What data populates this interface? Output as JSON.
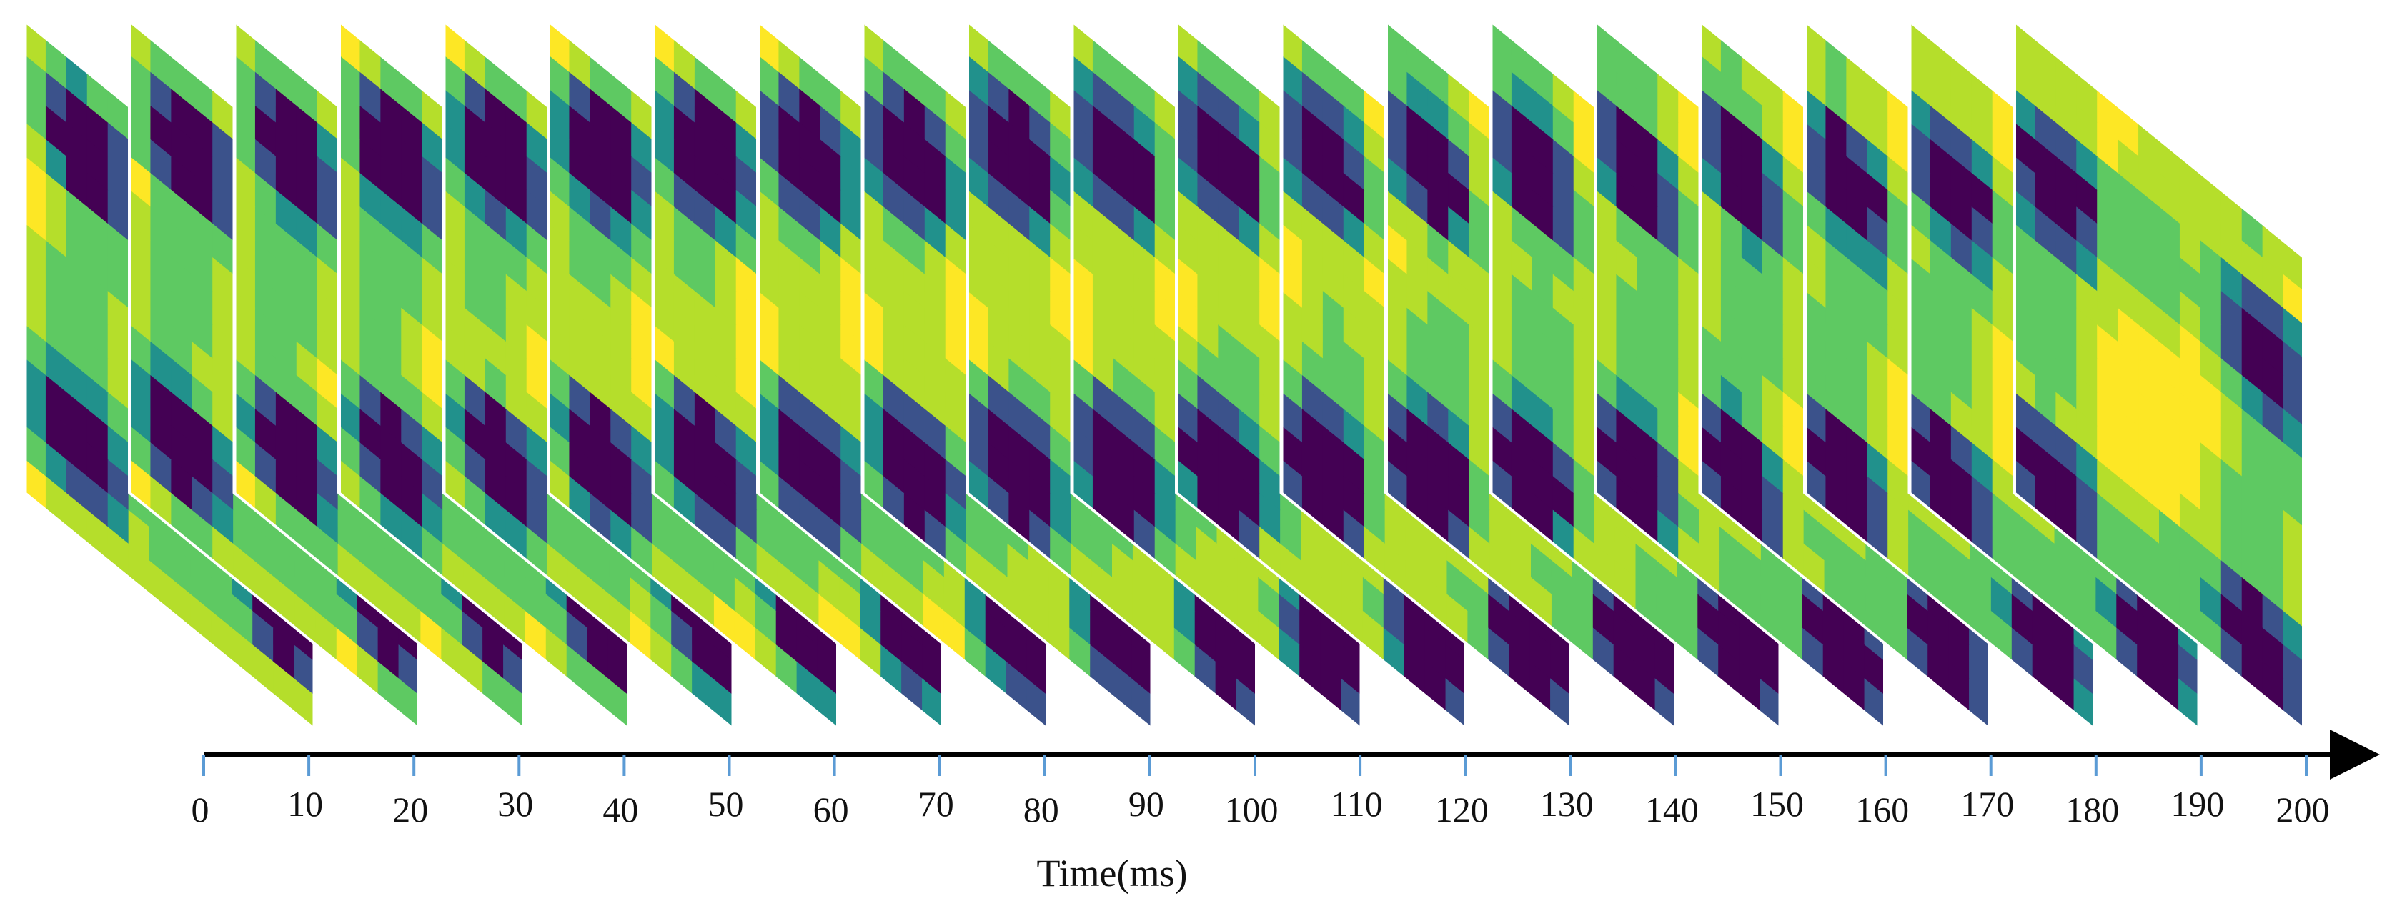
{
  "figure": {
    "description_type": "time-series stack of matrix frames",
    "colormap": [
      "#440154",
      "#3b528b",
      "#21918c",
      "#5ec962",
      "#b5de2b",
      "#fde725"
    ],
    "frame_border_color": "#ffffff",
    "axis_color": "#000000",
    "tick_color": "#5b9bd5"
  },
  "axis": {
    "label": "Time(ms)",
    "ticks": [
      0,
      10,
      20,
      30,
      40,
      50,
      60,
      70,
      80,
      90,
      100,
      110,
      120,
      130,
      140,
      150,
      160,
      170,
      180,
      190,
      200
    ],
    "range_ms": [
      0,
      200
    ]
  },
  "frames": {
    "count": 20,
    "interval_ms": 10,
    "grid_size": 14
  }
}
